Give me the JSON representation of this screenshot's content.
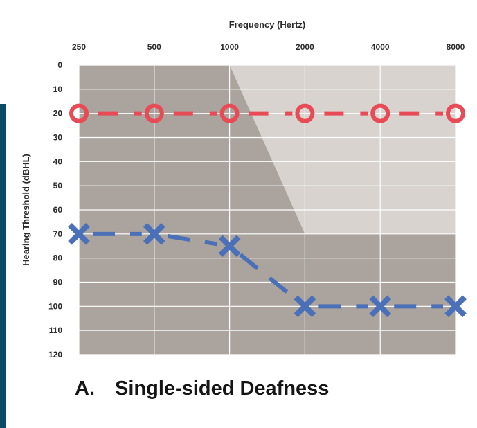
{
  "caption": {
    "letter": "A.",
    "text": "Single-sided Deafness"
  },
  "colors": {
    "plot_bg": "#aba49e",
    "light_zone": "#d8d3cf",
    "grid": "#ffffff",
    "right_ear": "#e84b55",
    "left_ear": "#4b70b8",
    "sidebar": "#0d4a66"
  },
  "chart_data": {
    "type": "line",
    "title": "",
    "xlabel": "Frequency (Hertz)",
    "ylabel": "Hearing Threshold (dBHL)",
    "x_position": "top",
    "categories": [
      "250",
      "500",
      "1000",
      "2000",
      "4000",
      "8000"
    ],
    "y_ticks": [
      0,
      10,
      20,
      30,
      40,
      50,
      60,
      70,
      80,
      90,
      100,
      110,
      120
    ],
    "ylim": [
      0,
      120
    ],
    "y_inverted": true,
    "grid": true,
    "series": [
      {
        "marker": "circle",
        "line_style": "dashed",
        "color": "#e84b55",
        "values": [
          20,
          20,
          20,
          20,
          20,
          20
        ]
      },
      {
        "marker": "x",
        "line_style": "dashed",
        "color": "#4b70b8",
        "values": [
          70,
          70,
          75,
          100,
          100,
          100
        ]
      }
    ],
    "shaded_region": {
      "polygon_in_data": [
        [
          "1000",
          0
        ],
        [
          "8000",
          0
        ],
        [
          "8000",
          70
        ],
        [
          "2000",
          70
        ]
      ]
    }
  }
}
